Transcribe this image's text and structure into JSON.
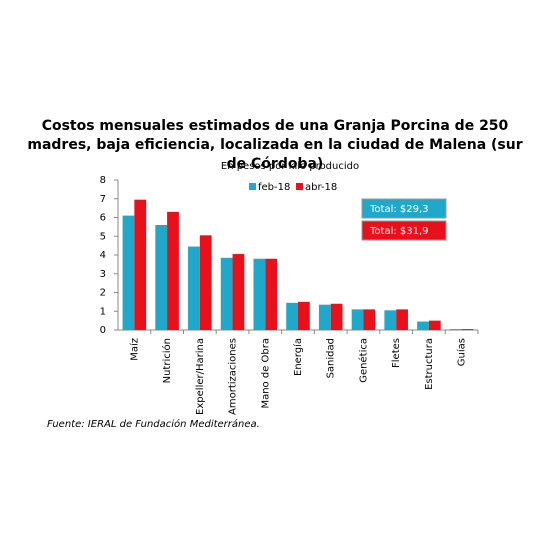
{
  "chart_data": {
    "type": "bar",
    "title": "Costos mensuales estimados de una Granja Porcina de 250 madres, baja eficiencia, localizada en la ciudad de Malena (sur de Córdoba)",
    "subtitle": "En pesos por kilo producido",
    "categories": [
      "Maíz",
      "Nutrición",
      "Expeller/Harina",
      "Amortizaciones",
      "Mano de Obra",
      "Energía",
      "Sanidad",
      "Genética",
      "Fletes",
      "Estructura",
      "Guías"
    ],
    "series": [
      {
        "name": "feb-18",
        "color": "#1fa8c9",
        "values": [
          6.1,
          5.6,
          4.45,
          3.85,
          3.8,
          1.45,
          1.35,
          1.1,
          1.05,
          0.45,
          0.05
        ]
      },
      {
        "name": "abr-18",
        "color": "#e8101a",
        "values": [
          6.95,
          6.3,
          5.05,
          4.05,
          3.8,
          1.5,
          1.4,
          1.1,
          1.1,
          0.5,
          0.05
        ]
      }
    ],
    "ylim": [
      0,
      8
    ],
    "yticks": [
      0,
      1,
      2,
      3,
      4,
      5,
      6,
      7,
      8
    ],
    "grid": false,
    "annotations": [
      {
        "text": "Total: $29,3",
        "color": "#1fa8c9"
      },
      {
        "text": "Total: $31,9",
        "color": "#e8101a"
      }
    ],
    "source": "Fuente: IERAL de Fundación Mediterránea."
  }
}
